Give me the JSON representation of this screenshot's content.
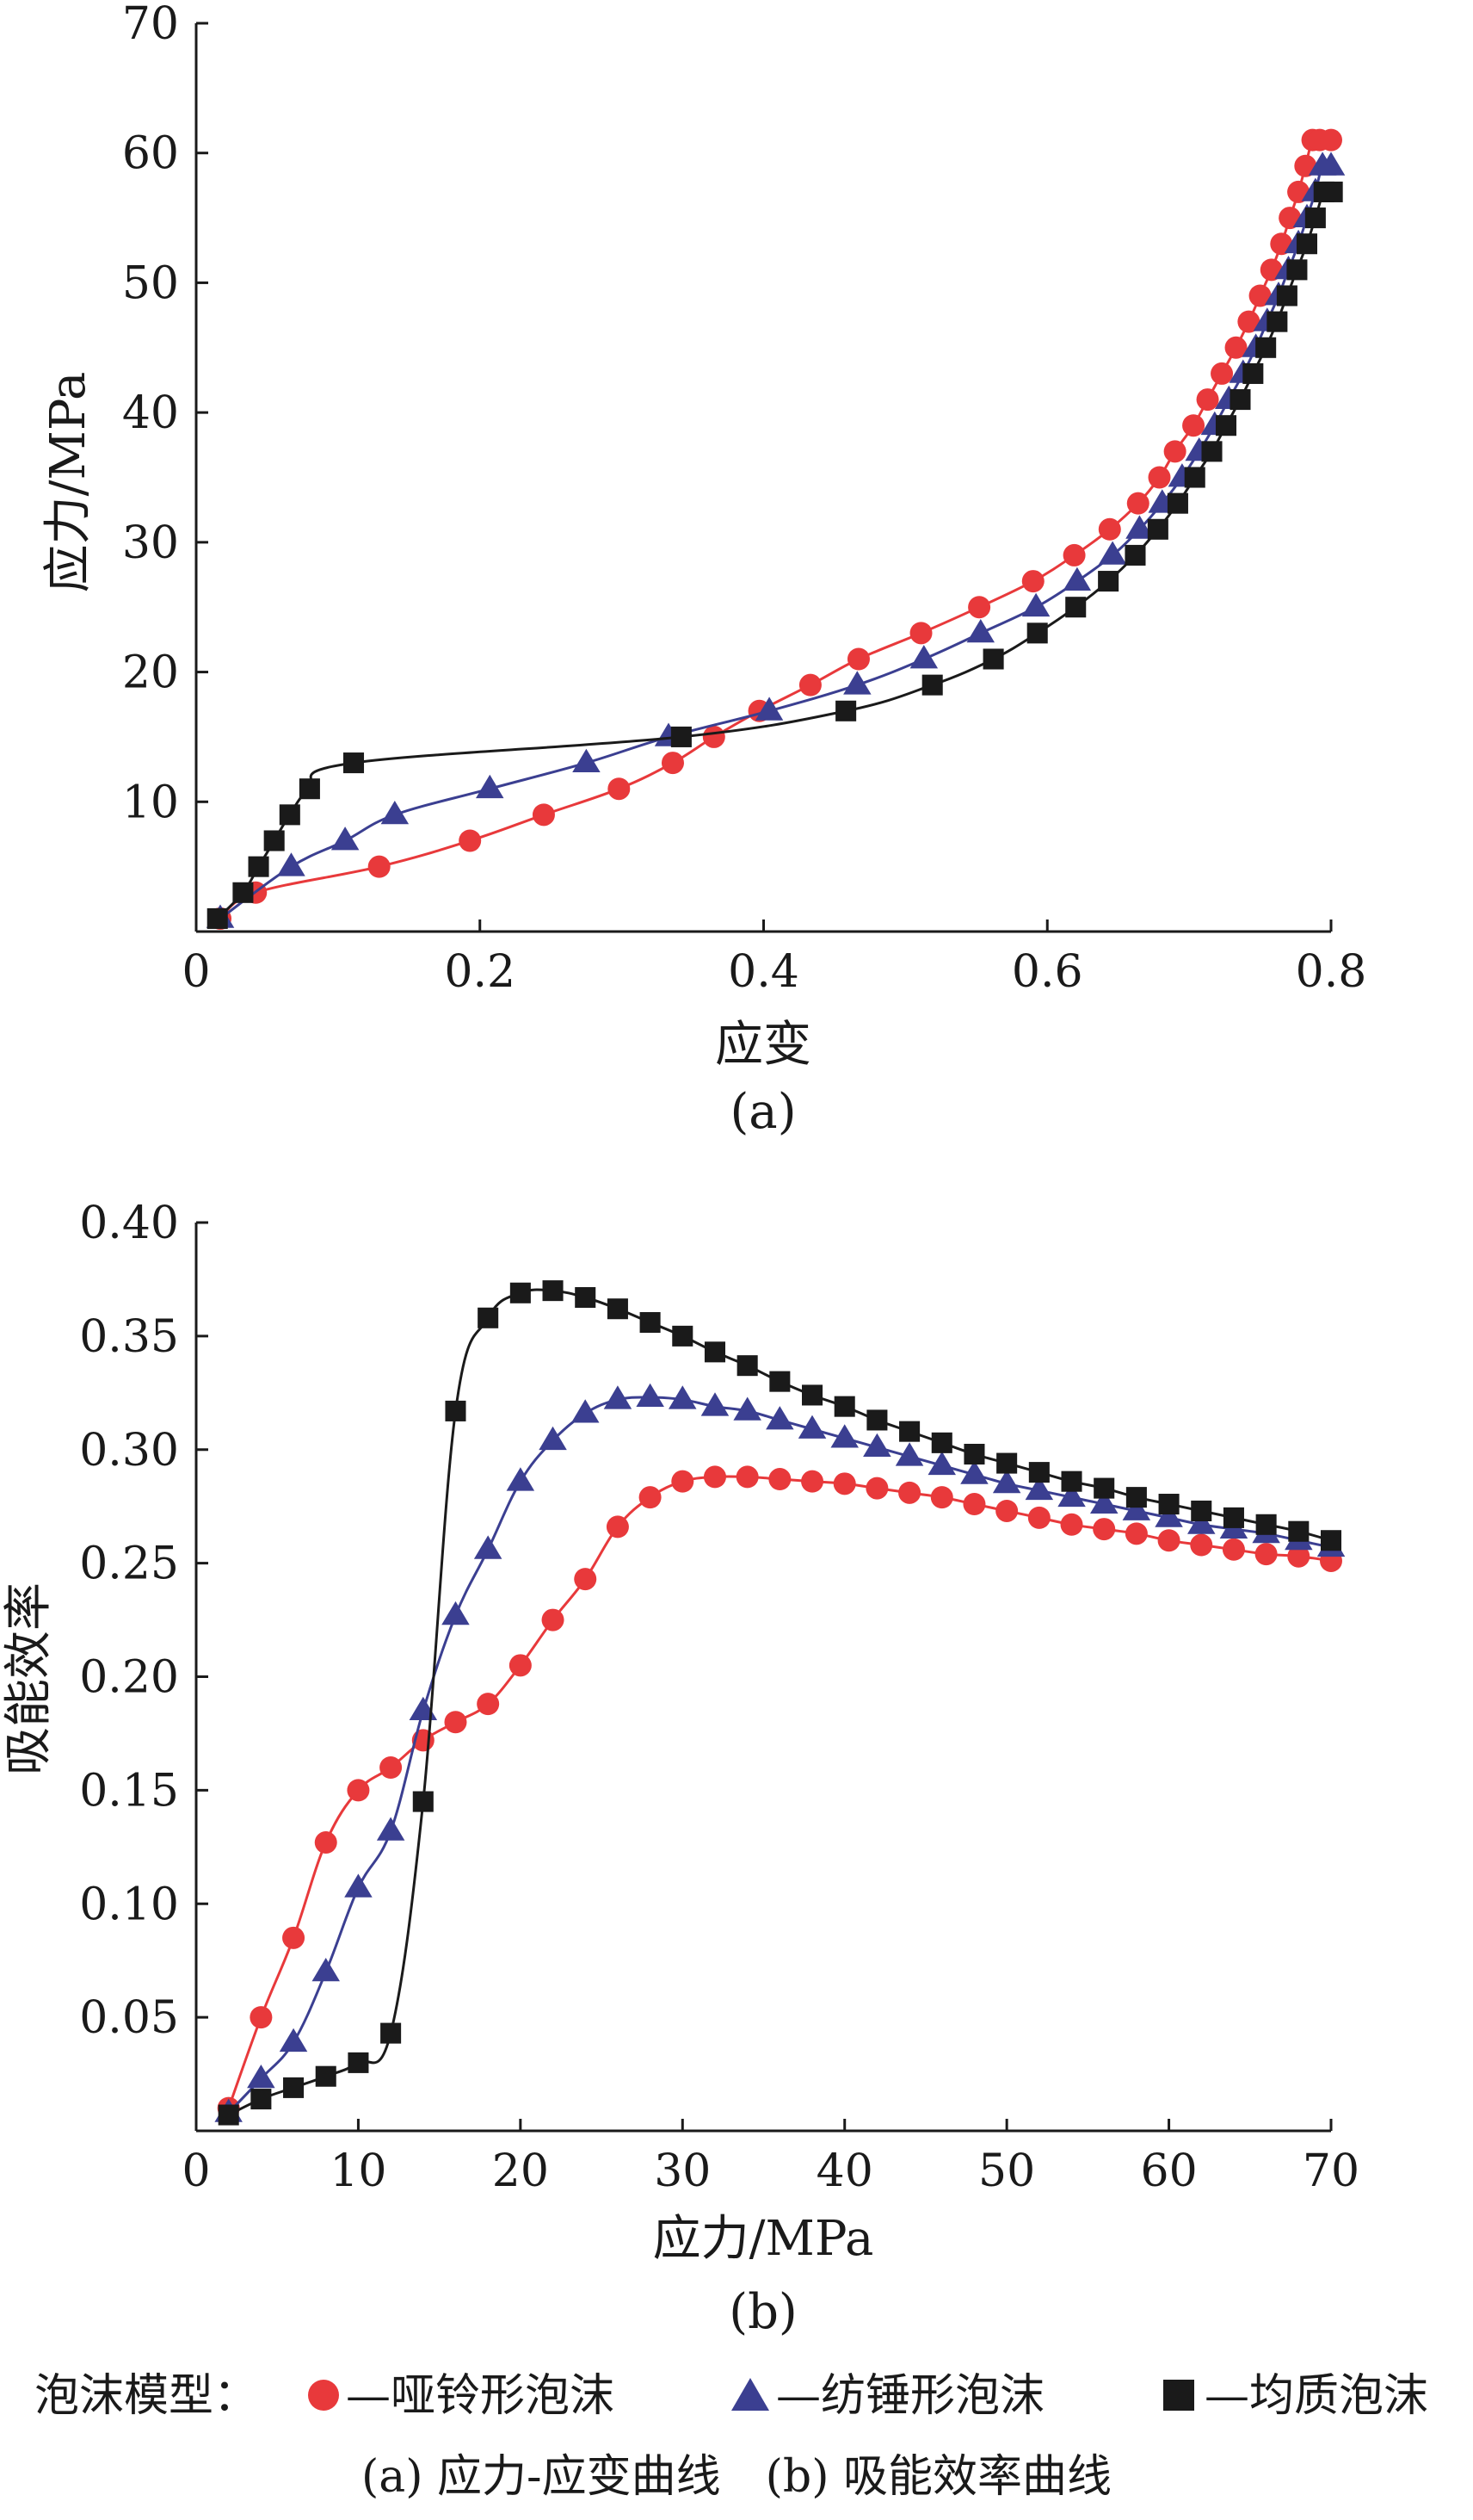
{
  "legend": {
    "prefix": "泡沫模型：",
    "items": [
      {
        "label": "—哑铃形泡沫",
        "marker": "circle",
        "color": "#e8393b"
      },
      {
        "label": "—纺锤形泡沫",
        "marker": "triangle",
        "color": "#3b3f91"
      },
      {
        "label": "—均质泡沫",
        "marker": "square",
        "color": "#1a1a1a"
      }
    ]
  },
  "caption": "(a) 应力-应变曲线　(b) 吸能效率曲线",
  "chart_data": [
    {
      "type": "line",
      "panel_label": "(a)",
      "xlabel": "应变",
      "ylabel": "应力/MPa",
      "xlim": [
        0,
        0.8
      ],
      "ylim": [
        0,
        70
      ],
      "x_ticks": [
        "0",
        "0.2",
        "0.4",
        "0.6",
        "0.8"
      ],
      "x_tick_values": [
        0,
        0.2,
        0.4,
        0.6,
        0.8
      ],
      "y_ticks": [
        "10",
        "20",
        "30",
        "40",
        "50",
        "60",
        "70"
      ],
      "y_tick_values": [
        10,
        20,
        30,
        40,
        50,
        60,
        70
      ],
      "series": [
        {
          "name": "哑铃形泡沫",
          "marker": "circle",
          "color": "#e8393b",
          "x": [
            0.017,
            0.042,
            0.129,
            0.193,
            0.245,
            0.298,
            0.336,
            0.365,
            0.397,
            0.433,
            0.467,
            0.511,
            0.552,
            0.59,
            0.619,
            0.644,
            0.664,
            0.679,
            0.69,
            0.703,
            0.713,
            0.723,
            0.733,
            0.742,
            0.75,
            0.758,
            0.765,
            0.771,
            0.777,
            0.782,
            0.787,
            0.792,
            0.8
          ],
          "y": [
            1,
            3,
            5,
            7,
            9,
            11,
            13,
            15,
            17,
            19,
            21,
            23,
            25,
            27,
            29,
            31,
            33,
            35,
            37,
            39,
            41,
            43,
            45,
            47,
            49,
            51,
            53,
            55,
            57,
            59,
            61,
            61,
            61
          ]
        },
        {
          "name": "纺锤形泡沫",
          "marker": "triangle",
          "color": "#3b3f91",
          "x": [
            0.017,
            0.067,
            0.105,
            0.14,
            0.207,
            0.275,
            0.333,
            0.404,
            0.466,
            0.513,
            0.553,
            0.592,
            0.621,
            0.646,
            0.665,
            0.681,
            0.695,
            0.707,
            0.718,
            0.728,
            0.738,
            0.747,
            0.755,
            0.763,
            0.77,
            0.777,
            0.783,
            0.789,
            0.794,
            0.8
          ],
          "y": [
            1,
            5,
            7,
            9,
            11,
            13,
            15,
            17,
            19,
            21,
            23,
            25,
            27,
            29,
            31,
            33,
            35,
            37,
            39,
            41,
            43,
            45,
            47,
            49,
            51,
            53,
            55,
            57,
            59,
            59
          ]
        },
        {
          "name": "均质泡沫",
          "marker": "square",
          "color": "#1a1a1a",
          "x": [
            0.015,
            0.033,
            0.044,
            0.055,
            0.066,
            0.08,
            0.111,
            0.342,
            0.458,
            0.519,
            0.562,
            0.593,
            0.62,
            0.643,
            0.662,
            0.678,
            0.692,
            0.704,
            0.716,
            0.726,
            0.736,
            0.745,
            0.754,
            0.762,
            0.769,
            0.776,
            0.783,
            0.789,
            0.795,
            0.801
          ],
          "y": [
            1,
            3,
            5,
            7,
            9,
            11,
            13,
            15,
            17,
            19,
            21,
            23,
            25,
            27,
            29,
            31,
            33,
            35,
            37,
            39,
            41,
            43,
            45,
            47,
            49,
            51,
            53,
            55,
            57,
            57
          ]
        }
      ]
    },
    {
      "type": "line",
      "panel_label": "(b)",
      "xlabel": "应力/MPa",
      "ylabel": "吸能效率",
      "xlim": [
        0,
        70
      ],
      "ylim": [
        0,
        0.4
      ],
      "x_ticks": [
        "0",
        "10",
        "20",
        "30",
        "40",
        "50",
        "60",
        "70"
      ],
      "x_tick_values": [
        0,
        10,
        20,
        30,
        40,
        50,
        60,
        70
      ],
      "y_ticks": [
        "0.05",
        "0.10",
        "0.15",
        "0.20",
        "0.25",
        "0.30",
        "0.35",
        "0.40"
      ],
      "y_tick_values": [
        0.05,
        0.1,
        0.15,
        0.2,
        0.25,
        0.3,
        0.35,
        0.4
      ],
      "series": [
        {
          "name": "哑铃形泡沫",
          "marker": "circle",
          "color": "#e8393b",
          "x": [
            2,
            4,
            6,
            8,
            10,
            12,
            14,
            16,
            18,
            20,
            22,
            24,
            26,
            28,
            30,
            32,
            34,
            36,
            38,
            40,
            42,
            44,
            46,
            48,
            50,
            52,
            54,
            56,
            58,
            60,
            62,
            64,
            66,
            68,
            70
          ],
          "y": [
            0.01,
            0.05,
            0.085,
            0.127,
            0.15,
            0.16,
            0.172,
            0.18,
            0.188,
            0.205,
            0.225,
            0.243,
            0.266,
            0.279,
            0.286,
            0.288,
            0.288,
            0.287,
            0.286,
            0.285,
            0.283,
            0.281,
            0.279,
            0.276,
            0.273,
            0.27,
            0.267,
            0.265,
            0.263,
            0.26,
            0.258,
            0.256,
            0.254,
            0.253,
            0.251
          ]
        },
        {
          "name": "纺锤形泡沫",
          "marker": "triangle",
          "color": "#3b3f91",
          "x": [
            2,
            4,
            6,
            8,
            10,
            12,
            14,
            16,
            18,
            20,
            22,
            24,
            26,
            28,
            30,
            32,
            34,
            36,
            38,
            40,
            42,
            44,
            46,
            48,
            50,
            52,
            54,
            56,
            58,
            60,
            62,
            64,
            66,
            68,
            70
          ],
          "y": [
            0.008,
            0.023,
            0.039,
            0.07,
            0.107,
            0.132,
            0.185,
            0.227,
            0.256,
            0.286,
            0.304,
            0.316,
            0.322,
            0.323,
            0.322,
            0.319,
            0.317,
            0.313,
            0.309,
            0.305,
            0.301,
            0.297,
            0.293,
            0.289,
            0.285,
            0.282,
            0.279,
            0.276,
            0.273,
            0.27,
            0.267,
            0.265,
            0.263,
            0.26,
            0.257
          ]
        },
        {
          "name": "均质泡沫",
          "marker": "square",
          "color": "#1a1a1a",
          "x": [
            2,
            4,
            6,
            8,
            10,
            12,
            14,
            16,
            18,
            20,
            22,
            24,
            26,
            28,
            30,
            32,
            34,
            36,
            38,
            40,
            42,
            44,
            46,
            48,
            50,
            52,
            54,
            56,
            58,
            60,
            62,
            64,
            66,
            68,
            70
          ],
          "y": [
            0.007,
            0.014,
            0.019,
            0.024,
            0.03,
            0.043,
            0.145,
            0.317,
            0.358,
            0.369,
            0.37,
            0.367,
            0.362,
            0.356,
            0.35,
            0.343,
            0.337,
            0.33,
            0.324,
            0.319,
            0.313,
            0.308,
            0.303,
            0.298,
            0.294,
            0.29,
            0.286,
            0.283,
            0.279,
            0.276,
            0.273,
            0.27,
            0.267,
            0.264,
            0.26
          ]
        }
      ]
    }
  ]
}
